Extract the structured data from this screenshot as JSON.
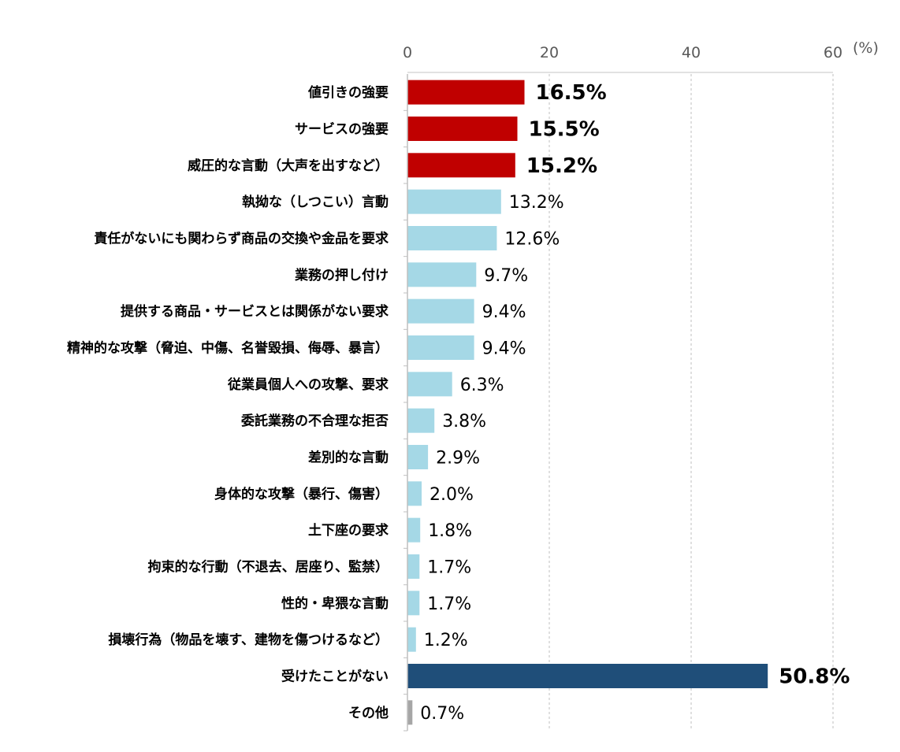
{
  "chart_data": {
    "type": "bar",
    "orientation": "horizontal",
    "title": "",
    "xlabel": "",
    "ylabel": "",
    "unit_label": "(%)",
    "xlim": [
      0,
      60
    ],
    "xticks": [
      0,
      20,
      40,
      60
    ],
    "grid": true,
    "categories": [
      "値引きの強要",
      "サービスの強要",
      "威圧的な言動（大声を出すなど）",
      "執拗な（しつこい）言動",
      "責任がないにも関わらず商品の交換や金品を要求",
      "業務の押し付け",
      "提供する商品・サービスとは関係がない要求",
      "精神的な攻撃（脅迫、中傷、名誉毀損、侮辱、暴言）",
      "従業員個人への攻撃、要求",
      "委託業務の不合理な拒否",
      "差別的な言動",
      "身体的な攻撃（暴行、傷害）",
      "土下座の要求",
      "拘束的な行動（不退去、居座り、監禁）",
      "性的・卑猥な言動",
      "損壊行為（物品を壊す、建物を傷つけるなど）",
      "受けたことがない",
      "その他"
    ],
    "values": [
      16.5,
      15.5,
      15.2,
      13.2,
      12.6,
      9.7,
      9.4,
      9.4,
      6.3,
      3.8,
      2.9,
      2.0,
      1.8,
      1.7,
      1.7,
      1.2,
      50.8,
      0.7
    ],
    "value_labels": [
      "16.5%",
      "15.5%",
      "15.2%",
      "13.2%",
      "12.6%",
      "9.7%",
      "9.4%",
      "9.4%",
      "6.3%",
      "3.8%",
      "2.9%",
      "2.0%",
      "1.8%",
      "1.7%",
      "1.7%",
      "1.2%",
      "50.8%",
      "0.7%"
    ],
    "bar_groups": [
      "top",
      "top",
      "top",
      "normal",
      "normal",
      "normal",
      "normal",
      "normal",
      "normal",
      "normal",
      "normal",
      "normal",
      "normal",
      "normal",
      "normal",
      "normal",
      "none",
      "other"
    ],
    "colors": {
      "top": "#C00000",
      "normal": "#A5D8E6",
      "none": "#1F4E79",
      "other": "#A6A6A6",
      "grid": "#BFBFBF"
    }
  }
}
